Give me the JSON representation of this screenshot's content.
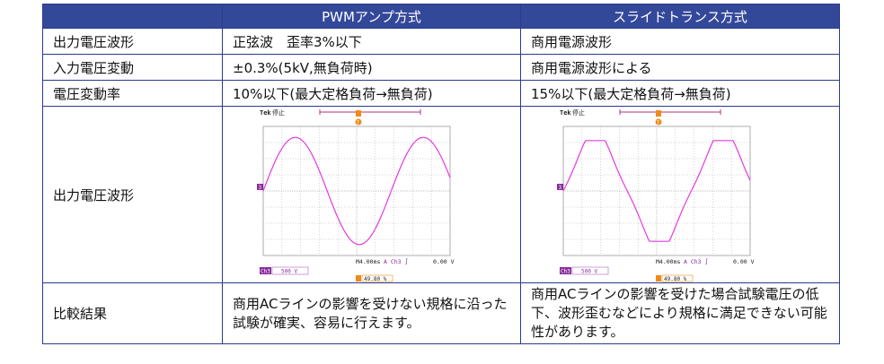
{
  "header": {
    "col1": "",
    "col2": "PWMアンプ方式",
    "col3": "スライドトランス方式"
  },
  "rows": [
    {
      "label": "出力電圧波形",
      "pwm": "正弦波　歪率3%以下",
      "slide": "商用電源波形"
    },
    {
      "label": "入力電圧変動",
      "pwm": "±0.3%(5kV,無負荷時)",
      "slide": "商用電源波形による"
    },
    {
      "label": "電圧変動率",
      "pwm": "10%以下(最大定格負荷→無負荷)",
      "slide": "15%以下(最大定格負荷→無負荷)"
    },
    {
      "label": "出力電圧波形"
    },
    {
      "label": "比較結果",
      "pwm": "商用ACラインの影響を受けない規格に沿った試験が確実、容易に行えます。",
      "slide": "商用ACラインの影響を受けた場合試験電圧の低下、波形歪むなどにより規格に満足できない可能性があります。"
    }
  ],
  "scope_pwm": {
    "brand": "Tek",
    "state": "停止",
    "channel_marker": "3",
    "trigger_marker": "T",
    "timebase": "M4.00ms",
    "trigger_channel": "A  Ch3 ∫",
    "trigger_level": "0.00 V",
    "channel_label": "Ch3",
    "volts_div": "500 V",
    "position": "49.80 %"
  },
  "scope_slide": {
    "brand": "Tek",
    "state": "停止",
    "channel_marker": "3",
    "trigger_marker": "T",
    "timebase": "M4.00ms",
    "trigger_channel": "A  Ch3 ∫",
    "trigger_level": "0.00 V",
    "channel_label": "Ch3",
    "volts_div": "500 V",
    "position": "49.80 %"
  },
  "colors": {
    "header_bg": "#34489a",
    "border": "#2b3a8c",
    "waveform": "#e23be0",
    "marker_orange": "#f08a1c",
    "channel_purple": "#8a2a9c"
  }
}
